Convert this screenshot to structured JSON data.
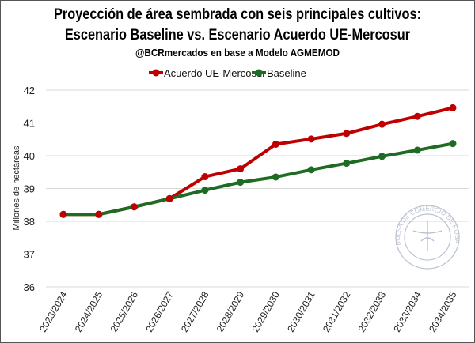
{
  "chart_data": {
    "type": "line",
    "title": "Proyección de área sembrada con seis principales cultivos:",
    "title_line2": "Escenario Baseline vs. Escenario Acuerdo UE-Mercosur",
    "subtitle": "@BCRmercados en base a Modelo AGMEMOD",
    "xlabel": "",
    "ylabel": "Millones de hectáreas",
    "ylim": [
      36,
      42
    ],
    "yticks": [
      "36",
      "37",
      "38",
      "39",
      "40",
      "41",
      "42"
    ],
    "grid": true,
    "legend": "top-center",
    "categories": [
      "2023/2024",
      "2024/2025",
      "2025/2026",
      "2026/2027",
      "2027/2028",
      "2028/2029",
      "2029/2030",
      "2030/2031",
      "2031/2032",
      "2032/2033",
      "2033/2034",
      "2034/2035"
    ],
    "series": [
      {
        "name": "Acuerdo UE-Mercosur",
        "color": "#c00000",
        "values": [
          38.21,
          38.21,
          38.44,
          38.69,
          39.36,
          39.6,
          40.35,
          40.51,
          40.68,
          40.96,
          41.2,
          41.46
        ]
      },
      {
        "name": "Baseline",
        "color": "#1e6b23",
        "values": [
          38.21,
          38.21,
          38.44,
          38.69,
          38.95,
          39.19,
          39.35,
          39.57,
          39.77,
          39.98,
          40.17,
          40.37
        ]
      }
    ],
    "watermark": "BOLSA DE COMERCIO DE ROSARIO"
  }
}
